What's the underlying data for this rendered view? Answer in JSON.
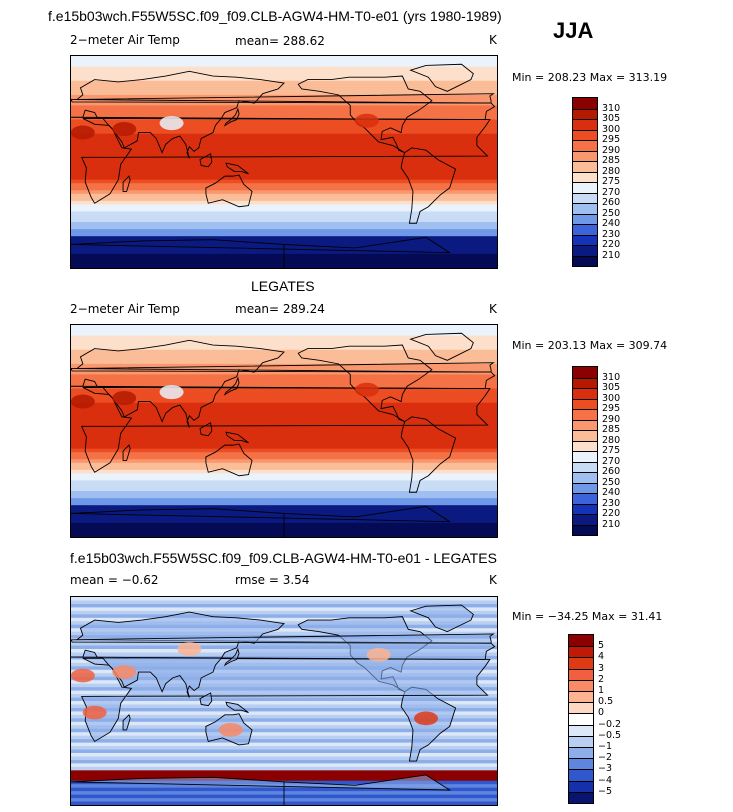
{
  "season": "JJA",
  "panels": [
    {
      "title": "f.e15b03wch.F55W5SC.f09_f09.CLB-AGW4-HM-T0-e01 (yrs 1980-1989)",
      "left_label": "2−meter Air Temp",
      "stat1": "mean=  288.62",
      "stat2": "",
      "units": "K",
      "minmax": "Min = 208.23  Max = 313.19",
      "field": "temp",
      "levels": [
        "310",
        "305",
        "300",
        "295",
        "290",
        "285",
        "280",
        "275",
        "270",
        "260",
        "250",
        "240",
        "230",
        "220",
        "210"
      ]
    },
    {
      "title": "LEGATES",
      "left_label": "2−meter Air Temp",
      "stat1": "mean=  289.24",
      "stat2": "",
      "units": "K",
      "minmax": "Min = 203.13  Max = 309.74",
      "field": "temp",
      "levels": [
        "310",
        "305",
        "300",
        "295",
        "290",
        "285",
        "280",
        "275",
        "270",
        "260",
        "250",
        "240",
        "230",
        "220",
        "210"
      ]
    },
    {
      "title": "f.e15b03wch.F55W5SC.f09_f09.CLB-AGW4-HM-T0-e01 - LEGATES",
      "left_label": "mean =   −0.62",
      "stat1": "rmse =    3.54",
      "stat2": "",
      "units": "K",
      "minmax": "Min = −34.25  Max =  31.41",
      "field": "diff",
      "levels": [
        "5",
        "4",
        "3",
        "2",
        "1",
        "0.5",
        "0",
        "−0.2",
        "−0.5",
        "−1",
        "−2",
        "−3",
        "−4",
        "−5"
      ]
    }
  ],
  "colors": {
    "temp": [
      "#8b0000",
      "#b51a00",
      "#d92f0e",
      "#ec4d22",
      "#f47245",
      "#f9976e",
      "#fbbc98",
      "#fde0cb",
      "#eaf2fb",
      "#c8dcf5",
      "#9ebff0",
      "#6f98e8",
      "#3c63d9",
      "#1433b8",
      "#0a1a80",
      "#050a55"
    ],
    "diff": [
      "#8b0000",
      "#c01a06",
      "#de3a16",
      "#f06040",
      "#f88a66",
      "#fbb392",
      "#fdd9c4",
      "#ffffff",
      "#dce7f8",
      "#b8cff2",
      "#8eaeea",
      "#5f86df",
      "#3058cc",
      "#1530a8",
      "#081470"
    ]
  },
  "chart_data": [
    {
      "type": "heatmap",
      "title": "f.e15b03wch.F55W5SC.f09_f09.CLB-AGW4-HM-T0-e01 (yrs 1980-1989)",
      "variable": "2-meter Air Temp",
      "units": "K",
      "season": "JJA",
      "mean": 288.62,
      "min": 208.23,
      "max": 313.19,
      "contour_levels": [
        210,
        220,
        230,
        240,
        250,
        260,
        270,
        275,
        280,
        285,
        290,
        295,
        300,
        305,
        310
      ]
    },
    {
      "type": "heatmap",
      "title": "LEGATES",
      "variable": "2-meter Air Temp",
      "units": "K",
      "mean": 289.24,
      "min": 203.13,
      "max": 309.74,
      "contour_levels": [
        210,
        220,
        230,
        240,
        250,
        260,
        270,
        275,
        280,
        285,
        290,
        295,
        300,
        305,
        310
      ]
    },
    {
      "type": "heatmap",
      "title": "f.e15b03wch.F55W5SC.f09_f09.CLB-AGW4-HM-T0-e01 - LEGATES",
      "units": "K",
      "mean": -0.62,
      "rmse": 3.54,
      "min": -34.25,
      "max": 31.41,
      "contour_levels": [
        -5,
        -4,
        -3,
        -2,
        -1,
        -0.5,
        -0.2,
        0,
        0.5,
        1,
        2,
        3,
        4,
        5
      ]
    }
  ]
}
